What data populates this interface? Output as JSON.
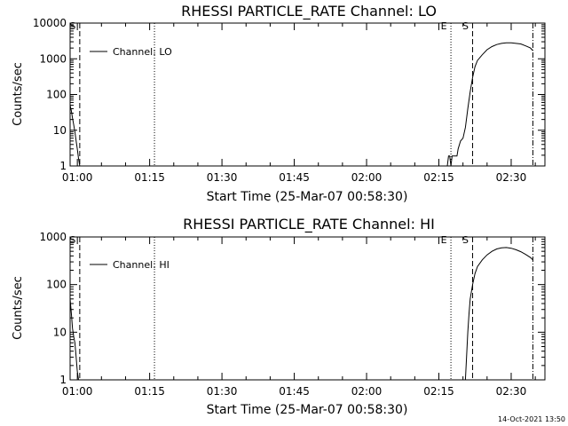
{
  "footer_timestamp": "14-Oct-2021 13:50",
  "chart_data": [
    {
      "type": "line",
      "title": "RHESSI PARTICLE_RATE Channel: LO",
      "xlabel": "Start Time (25-Mar-07 00:58:30)",
      "ylabel": "Counts/sec",
      "yscale": "log",
      "xlim": [
        "00:58:30",
        "02:37:00"
      ],
      "ylim": [
        1,
        10000
      ],
      "x_ticks": [
        "01:00",
        "01:15",
        "01:30",
        "01:45",
        "02:00",
        "02:15",
        "02:30"
      ],
      "y_ticks": [
        "1",
        "10",
        "100",
        "1000",
        "10000"
      ],
      "legend": {
        "label": "Channel: LO",
        "position": "top-left"
      },
      "markers": [
        {
          "label": "S",
          "time": "01:00:30",
          "style": "dashed"
        },
        {
          "label": "",
          "time": "01:16:00",
          "style": "dotted"
        },
        {
          "label": "E",
          "time": "02:17:30",
          "style": "dotted"
        },
        {
          "label": "S",
          "time": "02:22:00",
          "style": "dashed"
        },
        {
          "label": "",
          "time": "02:34:30",
          "style": "dashdot"
        }
      ],
      "series": [
        {
          "segments": [
            [
              [
                "00:58:30",
                50
              ],
              [
                "00:58:45",
                35
              ],
              [
                "00:59:00",
                22
              ],
              [
                "00:59:15",
                14
              ],
              [
                "00:59:30",
                9
              ],
              [
                "00:59:45",
                5
              ],
              [
                "01:00:00",
                3
              ],
              [
                "01:00:15",
                1.6
              ],
              [
                "01:00:30",
                1
              ]
            ],
            [
              [
                "02:16:45",
                1
              ],
              [
                "02:17:00",
                1.9
              ],
              [
                "02:17:15",
                1.9
              ],
              [
                "02:17:30",
                1
              ],
              [
                "02:17:45",
                1.9
              ],
              [
                "02:18:15",
                1.9
              ],
              [
                "02:18:45",
                1.9
              ],
              [
                "02:19:00",
                3
              ],
              [
                "02:19:30",
                5
              ],
              [
                "02:20:00",
                6
              ],
              [
                "02:20:30",
                12
              ],
              [
                "02:21:00",
                40
              ],
              [
                "02:21:30",
                120
              ],
              [
                "02:22:00",
                300
              ],
              [
                "02:22:30",
                600
              ],
              [
                "02:23:00",
                900
              ],
              [
                "02:24:00",
                1300
              ],
              [
                "02:25:00",
                1800
              ],
              [
                "02:26:00",
                2200
              ],
              [
                "02:27:00",
                2500
              ],
              [
                "02:28:00",
                2700
              ],
              [
                "02:29:00",
                2800
              ],
              [
                "02:30:00",
                2800
              ],
              [
                "02:31:00",
                2700
              ],
              [
                "02:32:00",
                2600
              ],
              [
                "02:33:00",
                2300
              ],
              [
                "02:34:00",
                2000
              ],
              [
                "02:34:30",
                1700
              ]
            ]
          ]
        }
      ]
    },
    {
      "type": "line",
      "title": "RHESSI PARTICLE_RATE Channel: HI",
      "xlabel": "Start Time (25-Mar-07 00:58:30)",
      "ylabel": "Counts/sec",
      "yscale": "log",
      "xlim": [
        "00:58:30",
        "02:37:00"
      ],
      "ylim": [
        1,
        1000
      ],
      "x_ticks": [
        "01:00",
        "01:15",
        "01:30",
        "01:45",
        "02:00",
        "02:15",
        "02:30"
      ],
      "y_ticks": [
        "1",
        "10",
        "100",
        "1000"
      ],
      "legend": {
        "label": "Channel: HI",
        "position": "top-left"
      },
      "markers": [
        {
          "label": "S",
          "time": "01:00:30",
          "style": "dashed"
        },
        {
          "label": "",
          "time": "01:16:00",
          "style": "dotted"
        },
        {
          "label": "E",
          "time": "02:17:30",
          "style": "dotted"
        },
        {
          "label": "S",
          "time": "02:22:00",
          "style": "dashed"
        },
        {
          "label": "",
          "time": "02:34:30",
          "style": "dashdot"
        }
      ],
      "series": [
        {
          "segments": [
            [
              [
                "00:58:30",
                50
              ],
              [
                "00:58:45",
                25
              ],
              [
                "00:59:00",
                12
              ],
              [
                "00:59:15",
                8
              ],
              [
                "00:59:30",
                6
              ],
              [
                "00:59:45",
                3
              ],
              [
                "01:00:00",
                1.5
              ],
              [
                "01:00:15",
                1
              ]
            ],
            [
              [
                "02:20:30",
                1
              ],
              [
                "02:20:45",
                3
              ],
              [
                "02:21:00",
                10
              ],
              [
                "02:21:15",
                25
              ],
              [
                "02:21:30",
                50
              ],
              [
                "02:22:00",
                100
              ],
              [
                "02:22:30",
                170
              ],
              [
                "02:23:00",
                240
              ],
              [
                "02:24:00",
                330
              ],
              [
                "02:25:00",
                420
              ],
              [
                "02:26:00",
                500
              ],
              [
                "02:27:00",
                560
              ],
              [
                "02:28:00",
                590
              ],
              [
                "02:29:00",
                600
              ],
              [
                "02:30:00",
                580
              ],
              [
                "02:31:00",
                540
              ],
              [
                "02:32:00",
                490
              ],
              [
                "02:33:00",
                430
              ],
              [
                "02:34:00",
                370
              ],
              [
                "02:34:30",
                330
              ]
            ]
          ]
        }
      ]
    }
  ]
}
